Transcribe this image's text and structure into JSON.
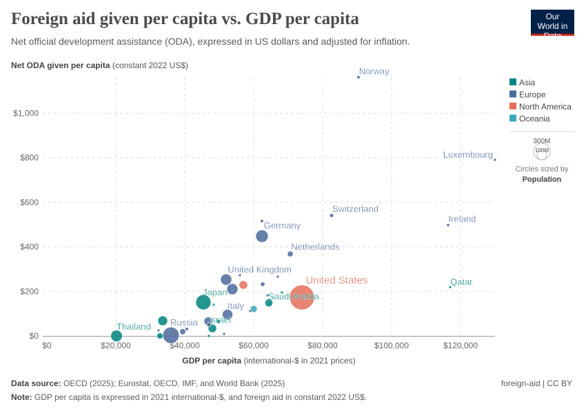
{
  "header": {
    "title": "Foreign aid given per capita vs. GDP per capita",
    "subtitle": "Net official development assistance (ODA), expressed in US dollars and adjusted for inflation.",
    "logo": "Our World in Data"
  },
  "footer": {
    "source_label": "Data source:",
    "source": "OECD (2025); Eurostat, OECD, IMF, and World Bank (2025)",
    "note_label": "Note:",
    "note": "GDP per capita is expressed in 2021 international-$, and foreign aid in constant 2022 US$.",
    "license": "foreign-aid | CC BY"
  },
  "chart_data": {
    "type": "scatter",
    "xlabel_bold": "GDP per capita",
    "xlabel_rest": " (international-$ in 2021 prices)",
    "ylabel_bold": "Net ODA given per capita",
    "ylabel_rest": " (constant 2022 US$)",
    "xlim": [
      0,
      130000
    ],
    "ylim": [
      0,
      1170
    ],
    "xticks": [
      {
        "v": 0,
        "t": "$0"
      },
      {
        "v": 20000,
        "t": "$20,000"
      },
      {
        "v": 40000,
        "t": "$40,000"
      },
      {
        "v": 60000,
        "t": "$60,000"
      },
      {
        "v": 80000,
        "t": "$80,000"
      },
      {
        "v": 100000,
        "t": "$100,000"
      },
      {
        "v": 120000,
        "t": "$120,000"
      }
    ],
    "yticks": [
      {
        "v": 0,
        "t": "$0"
      },
      {
        "v": 200,
        "t": "$200"
      },
      {
        "v": 400,
        "t": "$400"
      },
      {
        "v": 600,
        "t": "$600"
      },
      {
        "v": 800,
        "t": "$800"
      },
      {
        "v": 1000,
        "t": "$1,000"
      }
    ],
    "grid": true,
    "legend": {
      "position": "right",
      "items": [
        {
          "name": "Asia",
          "color": "#00847e"
        },
        {
          "name": "Europe",
          "color": "#4c6a9c"
        },
        {
          "name": "North America",
          "color": "#e56e5a"
        },
        {
          "name": "Oceania",
          "color": "#38aaba"
        }
      ],
      "size_big": "300M",
      "size_small": "100M",
      "size_note": "Circles sized by",
      "size_var": "Population"
    },
    "points": [
      {
        "label": "Norway",
        "c": "Europe",
        "x": 90400,
        "y": 1162,
        "pop": 5.5
      },
      {
        "label": "Luxembourg",
        "c": "Europe",
        "x": 130000,
        "y": 791,
        "pop": 0.7
      },
      {
        "label": "Switzerland",
        "c": "Europe",
        "x": 82600,
        "y": 541,
        "pop": 8.8
      },
      {
        "label": "Ireland",
        "c": "Europe",
        "x": 116400,
        "y": 498,
        "pop": 5.1
      },
      {
        "label": "",
        "c": "Europe",
        "x": 62400,
        "y": 516,
        "pop": 5.9
      },
      {
        "label": "Germany",
        "c": "Europe",
        "x": 62400,
        "y": 448,
        "pop": 84
      },
      {
        "label": "Netherlands",
        "c": "Europe",
        "x": 70600,
        "y": 368,
        "pop": 17.8
      },
      {
        "label": "United Kingdom",
        "c": "Europe",
        "x": 52000,
        "y": 253,
        "pop": 68
      },
      {
        "label": "",
        "c": "Europe",
        "x": 53800,
        "y": 210,
        "pop": 66
      },
      {
        "label": "",
        "c": "North America",
        "x": 57000,
        "y": 229,
        "pop": 39
      },
      {
        "label": "",
        "c": "Europe",
        "x": 62600,
        "y": 232,
        "pop": 10.5
      },
      {
        "label": "",
        "c": "Europe",
        "x": 56000,
        "y": 272,
        "pop": 1.5
      },
      {
        "label": "",
        "c": "Europe",
        "x": 67000,
        "y": 266,
        "pop": 1.5
      },
      {
        "label": "Qatar",
        "c": "Asia",
        "x": 117000,
        "y": 219,
        "pop": 2.7
      },
      {
        "label": "United States",
        "c": "North America",
        "x": 74000,
        "y": 173,
        "pop": 335
      },
      {
        "label": "Saudi Arabia",
        "c": "Asia",
        "x": 64400,
        "y": 148,
        "pop": 33
      },
      {
        "label": "",
        "c": "Asia",
        "x": 68200,
        "y": 195,
        "pop": 2
      },
      {
        "label": "",
        "c": "Europe",
        "x": 64000,
        "y": 182,
        "pop": 2
      },
      {
        "label": "Japan",
        "c": "Asia",
        "x": 45400,
        "y": 151,
        "pop": 124
      },
      {
        "label": "",
        "c": "Oceania",
        "x": 48400,
        "y": 140,
        "pop": 5.2
      },
      {
        "label": "",
        "c": "Oceania",
        "x": 60000,
        "y": 121,
        "pop": 26
      },
      {
        "label": "",
        "c": "Europe",
        "x": 59000,
        "y": 112,
        "pop": 2
      },
      {
        "label": "Italy",
        "c": "Europe",
        "x": 52400,
        "y": 96,
        "pop": 59
      },
      {
        "label": "Israel",
        "c": "Asia",
        "x": 49800,
        "y": 65,
        "pop": 9.7
      },
      {
        "label": "",
        "c": "Europe",
        "x": 46800,
        "y": 66,
        "pop": 38
      },
      {
        "label": "",
        "c": "Asia",
        "x": 48000,
        "y": 34,
        "pop": 38
      },
      {
        "label": "",
        "c": "Europe",
        "x": 47000,
        "y": 50,
        "pop": 10
      },
      {
        "label": "",
        "c": "Asia",
        "x": 47000,
        "y": 0,
        "pop": 1.5
      },
      {
        "label": "",
        "c": "Europe",
        "x": 51400,
        "y": 9,
        "pop": 2
      },
      {
        "label": "",
        "c": "Europe",
        "x": 39400,
        "y": 19,
        "pop": 19
      },
      {
        "label": "",
        "c": "Europe",
        "x": 40600,
        "y": 31,
        "pop": 6
      },
      {
        "label": "",
        "c": "Europe",
        "x": 32400,
        "y": 25,
        "pop": 3
      },
      {
        "label": "Russia",
        "c": "Europe",
        "x": 36000,
        "y": 3,
        "pop": 145
      },
      {
        "label": "",
        "c": "Asia",
        "x": 33600,
        "y": 68,
        "pop": 51
      },
      {
        "label": "",
        "c": "Asia",
        "x": 32800,
        "y": 0,
        "pop": 20
      },
      {
        "label": "Thailand",
        "c": "Asia",
        "x": 20200,
        "y": 0,
        "pop": 72
      }
    ]
  }
}
